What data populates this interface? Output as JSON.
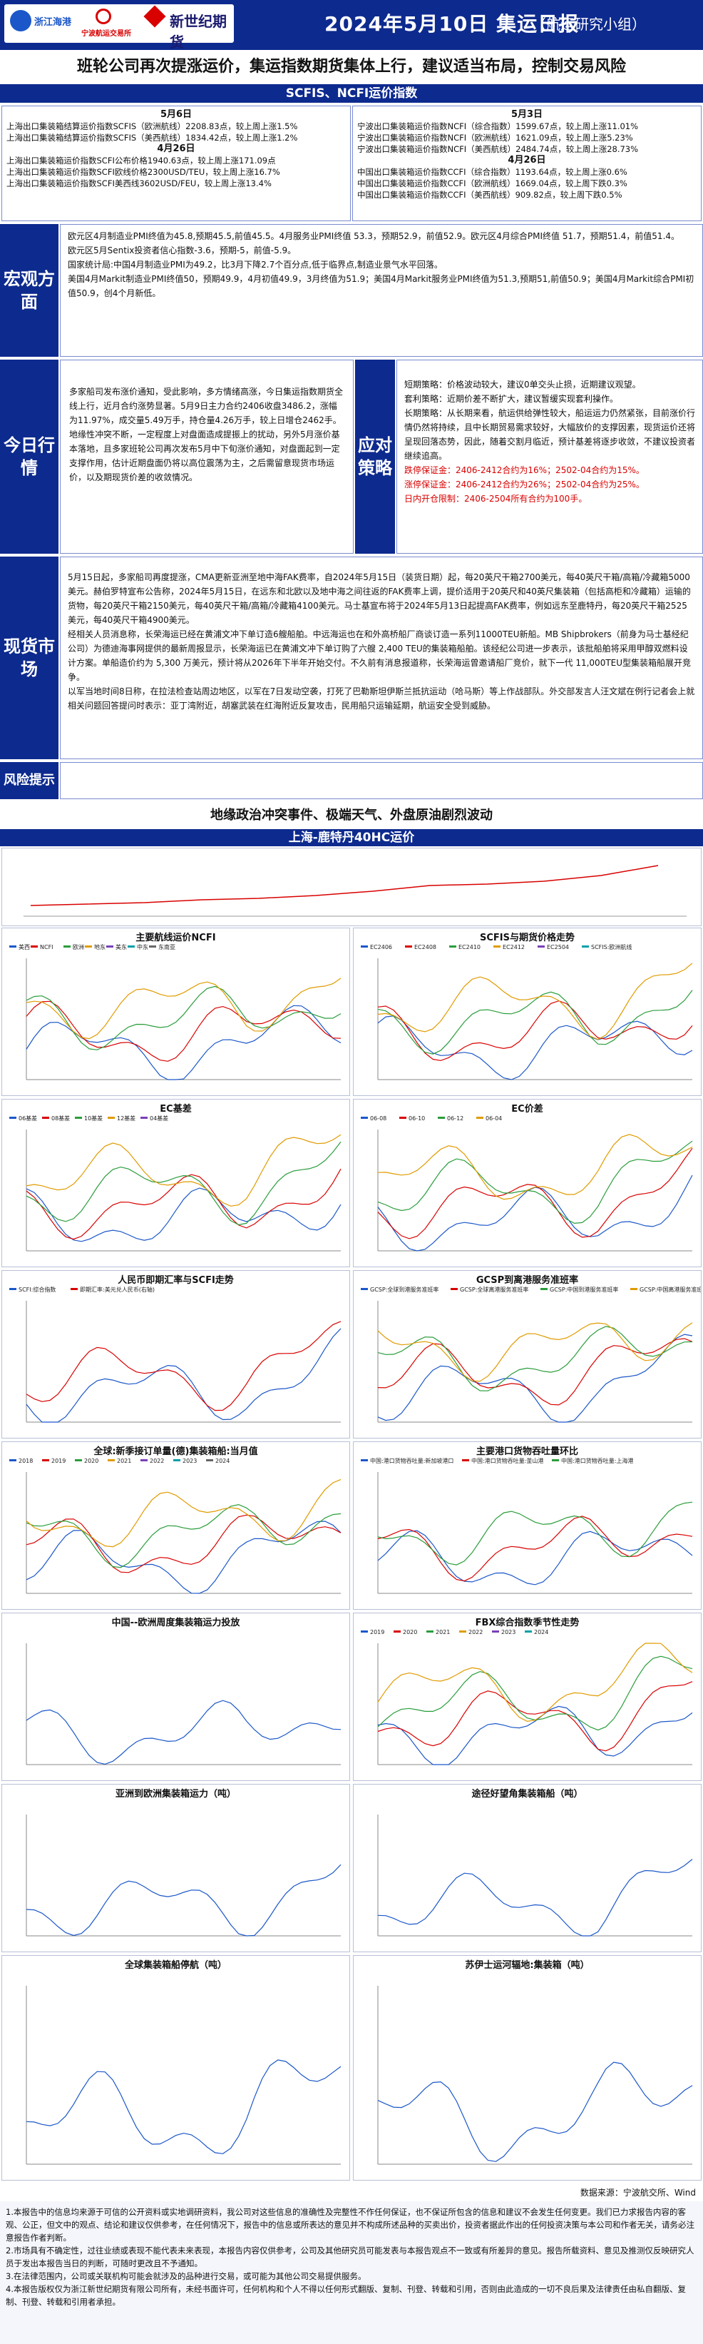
{
  "header": {
    "logo1": "浙江海港",
    "logo2": "宁波航运交易所",
    "logo3": "新世纪期货",
    "title": "2024年5月10日 集运日报",
    "team": "（航运研究小组）"
  },
  "headline": "班轮公司再次提涨运价，集运指数期货集体上行，建议适当布局，控制交易风险",
  "index_bar": "SCFIS、NCFI运价指数",
  "left_index": {
    "date1": "5月6日",
    "l1": "上海出口集装箱结算运价指数SCFIS（欧洲航线）2208.83点，较上周上涨1.5%",
    "l2": "上海出口集装箱结算运价指数SCFIS（美西航线）1834.42点，较上周上涨1.2%",
    "date2": "4月26日",
    "l3": "上海出口集装箱运价指数SCFI公布价格1940.63点，较上周上涨171.09点",
    "l4": "上海出口集装箱运价指数SCFI欧线价格2300USD/TEU，较上周上涨16.7%",
    "l5": "上海出口集装箱运价指数SCFI美西线3602USD/FEU，较上周上涨13.4%"
  },
  "right_index": {
    "date1": "5月3日",
    "l1": "宁波出口集装箱运价指数NCFI（综合指数）1599.67点，较上周上涨11.01%",
    "l2": "宁波出口集装箱运价指数NCFI（欧洲航线）1621.09点，较上周上涨5.23%",
    "l3": "宁波出口集装箱运价指数NCFI（美西航线）2484.74点，较上周上涨28.73%",
    "date2": "4月26日",
    "l4": "中国出口集装箱运价指数CCFI（综合指数）1193.64点，较上周上涨0.6%",
    "l5": "中国出口集装箱运价指数CCFI（欧洲航线）1669.04点，较上周下跌0.3%",
    "l6": "中国出口集装箱运价指数CCFI（美西航线）909.82点，较上周下跌0.5%"
  },
  "macro": {
    "label": "宏观方面",
    "lines": [
      "欧元区4月制造业PMI终值为45.8,预期45.5,前值45.5。4月服务业PMI终值 53.3，预期52.9，前值52.9。欧元区4月综合PMI终值 51.7，预期51.4，前值51.4。",
      "欧元区5月Sentix投资者信心指数-3.6，预期-5，前值-5.9。",
      "国家统计局:中国4月制造业PMI为49.2，比3月下降2.7个百分点,低于临界点,制造业景气水平回落。",
      "美国4月Markit制造业PMI终值50，预期49.9，4月初值49.9，3月终值为51.9；美国4月Markit服务业PMI终值为51.3,预期51,前值50.9；美国4月Markit综合PMI初值50.9，创4个月新低。"
    ]
  },
  "today": {
    "label": "今日行情",
    "text": "多家船司发布涨价通知，受此影响，多方情绪高涨，今日集运指数期货全线上行，近月合约涨势显著。5月9日主力合约2406收盘3486.2，涨幅为11.97%，成交量5.49万手，持仓量4.26万手，较上日增仓2462手。",
    "text2": "地缘性冲突不断，一定程度上对盘面造成提振上的扰动，另外5月涨价基本落地，且多家班轮公司再次发布5月中下旬涨价通知，对盘面起到一定支撑作用，估计近期盘面仍将以高位震荡为主，之后需留意现货市场运价，以及期现货价差的收敛情况。"
  },
  "strategy": {
    "label": "应对策略",
    "items": [
      {
        "text": "短期策略：价格波动较大，建议0单交头止损，近期建议观望。",
        "red": false
      },
      {
        "text": "套利策略：近期价差不断扩大，建议暂缓实现套利操作。",
        "red": false
      },
      {
        "text": "长期策略：从长期来看，航运供给弹性较大，船运运力仍然紧张，目前涨价行情仍然将持续，且中长期贸易需求较好，大幅放价的支撑因素，现货运价还将呈现回落态势，因此，随着交割月临近，预计基差将逐步收敛，不建议投资者继续追高。",
        "red": false
      },
      {
        "text": "跌停保证金：2406-2412合约为16%；2502-04合约为15%。",
        "red": true
      },
      {
        "text": "涨停保证金：2406-2412合约为26%；2502-04合约为25%。",
        "red": true
      },
      {
        "text": "日内开仓限制：2406-2504所有合约为100手。",
        "red": true
      }
    ]
  },
  "spot": {
    "label": "现货市场",
    "text": "5月15日起，多家船司再度提涨，CMA更新亚洲至地中海FAK费率，自2024年5月15日（装货日期）起，每20英尺干箱2700美元，每40英尺干箱/高箱/冷藏箱5000美元。赫伯罗特宣布公告称，2024年5月15日，在远东和北欧以及地中海之间往返的FAK费率上调，提价适用于20英尺和40英尺集装箱（包括高柜和冷藏箱）运输的货物，每20英尺干箱2150美元，每40英尺干箱/高箱/冷藏箱4100美元。马士基宣布将于2024年5月13日起提高FAK费率，例如远东至鹿特丹，每20英尺干箱2525美元，每40英尺干箱4900美元。",
    "text2": "经相关人员消息称，长荣海运已经在黄浦文冲下单订造6艘船舶。中远海运也在和外高桥船厂商谈订造一系列11000TEU新船。MB Shipbrokers（前身为马士基经纪公司）为德迪海事网提供的最新周报显示，长荣海运已在黄浦文冲下单订购了六艘 2,400 TEU的集装箱船舶。该经纪公司进一步表示，该批船舶将采用甲醇双燃料设计方案。单船造价约为 5,300 万美元，预计将从2026年下半年开始交付。不久前有消息报道称，长荣海运曾邀请船厂竞价，就下一代 11,000TEU型集装箱船展开竞争。",
    "text3": "以军当地时间8日称，在拉法检查站周边地区，以军在7日发动空袭，打死了巴勒斯坦伊斯兰抵抗运动（哈马斯）等上作战部队。外交部发言人汪文斌在例行记者会上就相关问题回答提问时表示：亚丁湾附近，胡塞武装在红海附近反复攻击，民用船只运输延期，航运安全受到威胁。"
  },
  "risk": {
    "label": "风险提示",
    "text": "地缘政治冲突事件、极端天气、外盘原油剧烈波动"
  },
  "chart_bar": "上海-鹿特丹40HC运价",
  "source": "数据来源：宁波航交所、Wind",
  "charts": [
    {
      "title": "主要航线运价NCFI",
      "legend": [
        "美西",
        "NCFI",
        "欧洲",
        "地东",
        "美东",
        "中东",
        "东南亚"
      ]
    },
    {
      "title": "SCFIS与期货价格走势",
      "legend": [
        "EC2406",
        "EC2408",
        "EC2410",
        "EC2412",
        "EC2504",
        "SCFIS:欧洲航线"
      ]
    },
    {
      "title": "EC基差",
      "legend": [
        "06基差",
        "08基差",
        "10基差",
        "12基差",
        "04基差"
      ]
    },
    {
      "title": "EC价差",
      "legend": [
        "06-08",
        "06-10",
        "06-12",
        "06-04"
      ]
    },
    {
      "title": "人民币即期汇率与SCFI走势",
      "legend": [
        "SCFI:综合指数",
        "即期汇率:美元兑人民币(右轴)"
      ]
    },
    {
      "title": "GCSP到离港服务准班率",
      "legend": [
        "GCSP:全球到港服务准班率",
        "GCSP:全球离港服务准班率",
        "GCSP:中国到港服务准班率",
        "GCSP:中国离港服务准班率"
      ]
    },
    {
      "title": "全球:新季接订单量(德)集装箱船:当月值",
      "legend": [
        "2018",
        "2019",
        "2020",
        "2021",
        "2022",
        "2023",
        "2024"
      ]
    },
    {
      "title": "主要港口货物吞吐量环比",
      "legend": [
        "中国:港口货物吞吐量:新加坡港口",
        "中国:港口货物吞吐量:釜山港",
        "中国:港口货物吞吐量:上海港"
      ]
    },
    {
      "title": "中国--欧洲周度集装箱运力投放",
      "legend": []
    },
    {
      "title": "FBX综合指数季节性走势",
      "legend": [
        "2019",
        "2020",
        "2021",
        "2022",
        "2023",
        "2024"
      ]
    },
    {
      "title": "亚洲到欧洲集装箱运力（吨）",
      "legend": []
    },
    {
      "title": "途径好望角集装箱船（吨）",
      "legend": []
    },
    {
      "title": "全球集装箱船停航（吨）",
      "legend": []
    },
    {
      "title": "苏伊士运河辐地:集装箱（吨）",
      "legend": []
    }
  ],
  "disclaimer": {
    "d1": "1.本报告中的信息均来源于可信的公开资料或实地调研资料，我公司对这些信息的准确性及完整性不作任何保证，也不保证所包含的信息和建议不会发生任何变更。我们已力求报告内容的客观、公正，但文中的观点、结论和建议仅供参考，在任何情况下，报告中的信息或所表达的意见并不构成所述品种的买卖出价，投资者据此作出的任何投资决策与本公司和作者无关，请务必注意报告作者判断。",
    "d2": "2.市场具有不确定性，过往业绩或表现不能代表未来表现，本报告内容仅供参考，公司及其他研究员可能发表与本报告观点不一致或有所差异的意见。报告所载资料、意见及推测仅反映研究人员于发出本报告当日的判断，可随时更改且不予通知。",
    "d3": "3.在法律范围内，公司或关联机构可能会就涉及的品种进行交易，或可能为其他公司交易提供服务。",
    "d4": "4.本报告版权仅为浙江新世纪期货有限公司所有，未经书面许可，任何机构和个人不得以任何形式翻版、复制、刊登、转载和引用，否则由此造成的一切不良后果及法律责任由私自翻版、复制、刊登、转载和引用者承担。"
  },
  "colors": {
    "brand": "#0d2a8e",
    "red": "#d90000"
  }
}
